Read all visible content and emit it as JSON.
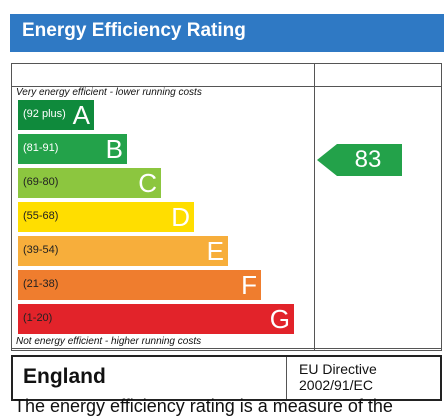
{
  "title": "Energy Efficiency Rating",
  "captions": {
    "top": "Very energy efficient - lower running costs",
    "bottom": "Not energy efficient - higher running costs"
  },
  "bands": [
    {
      "range": "(92 plus)",
      "letter": "A",
      "color": "#0f8a3c"
    },
    {
      "range": "(81-91)",
      "letter": "B",
      "color": "#23a24a"
    },
    {
      "range": "(69-80)",
      "letter": "C",
      "color": "#8cc63f"
    },
    {
      "range": "(55-68)",
      "letter": "D",
      "color": "#ffde00"
    },
    {
      "range": "(39-54)",
      "letter": "E",
      "color": "#f7ae3b"
    },
    {
      "range": "(21-38)",
      "letter": "F",
      "color": "#ef7d2e"
    },
    {
      "range": "(1-20)",
      "letter": "G",
      "color": "#e2232a"
    }
  ],
  "current_rating": {
    "value": "83",
    "band": "B",
    "color": "#23a24a"
  },
  "footer": {
    "country": "England",
    "directive_line1": "EU Directive",
    "directive_line2": "2002/91/EC"
  },
  "colors": {
    "title_bar": "#2f79c4"
  },
  "cut_text": "The energy efficiency rating is a measure of the"
}
